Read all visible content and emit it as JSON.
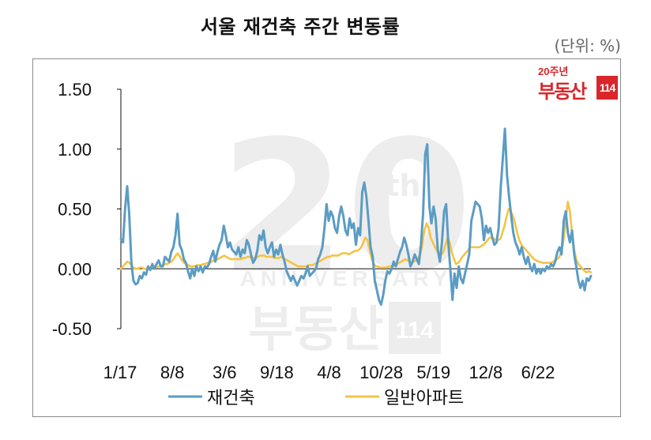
{
  "header": {
    "title": "서울 재건축 주간 변동률",
    "unit": "(단위: %)"
  },
  "logo": {
    "top_text": "20주년",
    "main_text": "부동산",
    "number_text": "114",
    "color": "#d8262b"
  },
  "watermark": {
    "number": "20",
    "suffix": "th",
    "arc_text": "ANNIVERSARY",
    "brand": "부동산",
    "brand_num": "114"
  },
  "chart_data": {
    "type": "line",
    "title": "서울 재건축 주간 변동률",
    "unit": "(단위: %)",
    "ylim": [
      -0.5,
      1.5
    ],
    "yticks": [
      1.5,
      1.0,
      0.5,
      0.0,
      -0.5
    ],
    "ytick_labels": [
      "1.50",
      "1.00",
      "0.50",
      "0.00",
      "-0.50"
    ],
    "xtick_labels": [
      "1/17",
      "8/8",
      "3/6",
      "9/18",
      "4/8",
      "10/28",
      "5/19",
      "12/8",
      "6/22"
    ],
    "legend_position": "bottom",
    "grid": false,
    "series": [
      {
        "name": "재건축",
        "color": "#5b9cc4",
        "values": [
          0.25,
          0.22,
          0.5,
          0.69,
          0.45,
          0.05,
          -0.1,
          -0.13,
          -0.12,
          -0.06,
          -0.08,
          -0.03,
          -0.05,
          0.02,
          -0.01,
          0.04,
          0.0,
          0.04,
          0.07,
          0.02,
          0.02,
          0.1,
          0.08,
          0.06,
          0.14,
          0.18,
          0.28,
          0.46,
          0.2,
          0.16,
          0.08,
          0.05,
          -0.02,
          -0.08,
          0.0,
          -0.06,
          0.02,
          -0.02,
          0.02,
          -0.03,
          0.02,
          0.01,
          0.04,
          0.1,
          0.15,
          0.06,
          0.14,
          0.2,
          0.24,
          0.36,
          0.28,
          0.18,
          0.22,
          0.16,
          0.14,
          0.12,
          0.18,
          0.1,
          0.16,
          0.13,
          0.24,
          0.2,
          0.12,
          0.05,
          0.08,
          0.15,
          0.28,
          0.24,
          0.32,
          0.18,
          0.13,
          0.18,
          0.22,
          0.1,
          0.16,
          0.12,
          0.2,
          0.12,
          0.06,
          -0.02,
          -0.06,
          -0.1,
          -0.06,
          -0.1,
          -0.14,
          -0.1,
          -0.06,
          -0.08,
          -0.04,
          0.02,
          -0.06,
          -0.04,
          -0.02,
          0.0,
          0.08,
          0.12,
          0.18,
          0.34,
          0.54,
          0.4,
          0.48,
          0.44,
          0.34,
          0.3,
          0.44,
          0.52,
          0.44,
          0.32,
          0.28,
          0.42,
          0.34,
          0.38,
          0.2,
          0.34,
          0.28,
          0.64,
          0.72,
          0.6,
          0.4,
          0.18,
          0.1,
          -0.1,
          -0.18,
          -0.26,
          -0.3,
          -0.22,
          -0.1,
          -0.02,
          -0.04,
          0.0,
          0.06,
          0.02,
          0.08,
          0.14,
          0.18,
          0.26,
          0.2,
          0.12,
          0.02,
          0.06,
          0.12,
          0.08,
          0.04,
          0.2,
          0.46,
          0.96,
          1.04,
          0.52,
          0.38,
          0.52,
          0.42,
          0.16,
          0.06,
          0.22,
          0.48,
          0.54,
          0.22,
          0.0,
          -0.26,
          -0.04,
          -0.16,
          0.02,
          -0.08,
          -0.12,
          -0.04,
          0.04,
          0.12,
          0.4,
          0.48,
          0.56,
          0.54,
          0.52,
          0.42,
          0.24,
          0.36,
          0.3,
          0.34,
          0.26,
          0.2,
          0.22,
          0.34,
          0.68,
          0.92,
          1.17,
          0.78,
          0.6,
          0.44,
          0.3,
          0.22,
          0.18,
          0.12,
          0.18,
          0.1,
          0.04,
          0.1,
          0.02,
          -0.02,
          0.04,
          -0.04,
          0.0,
          -0.04,
          0.0,
          -0.02,
          0.02,
          0.0,
          0.04,
          0.02,
          0.06,
          0.14,
          0.18,
          0.12,
          0.4,
          0.48,
          0.3,
          0.22,
          0.32,
          0.12,
          0.02,
          -0.1,
          -0.16,
          -0.1,
          -0.18,
          -0.08,
          -0.1,
          -0.06
        ]
      },
      {
        "name": "일반아파트",
        "color": "#f5c344",
        "values": [
          0.0,
          0.02,
          0.04,
          0.06,
          0.05,
          0.03,
          0.01,
          0.0,
          0.0,
          0.01,
          0.01,
          0.0,
          0.0,
          0.01,
          0.01,
          0.02,
          0.01,
          0.01,
          0.02,
          0.02,
          0.03,
          0.04,
          0.04,
          0.05,
          0.06,
          0.08,
          0.11,
          0.13,
          0.1,
          0.07,
          0.05,
          0.04,
          0.03,
          0.02,
          0.02,
          0.02,
          0.03,
          0.03,
          0.03,
          0.04,
          0.04,
          0.05,
          0.05,
          0.06,
          0.07,
          0.07,
          0.08,
          0.09,
          0.1,
          0.11,
          0.1,
          0.09,
          0.08,
          0.08,
          0.08,
          0.08,
          0.08,
          0.08,
          0.09,
          0.09,
          0.1,
          0.1,
          0.09,
          0.09,
          0.09,
          0.1,
          0.11,
          0.11,
          0.11,
          0.1,
          0.1,
          0.1,
          0.1,
          0.09,
          0.09,
          0.09,
          0.1,
          0.09,
          0.08,
          0.07,
          0.06,
          0.05,
          0.04,
          0.03,
          0.02,
          0.02,
          0.02,
          0.02,
          0.02,
          0.03,
          0.03,
          0.03,
          0.04,
          0.05,
          0.06,
          0.07,
          0.08,
          0.09,
          0.1,
          0.1,
          0.11,
          0.11,
          0.11,
          0.11,
          0.12,
          0.13,
          0.13,
          0.13,
          0.12,
          0.13,
          0.14,
          0.15,
          0.15,
          0.16,
          0.18,
          0.22,
          0.26,
          0.24,
          0.16,
          0.08,
          0.04,
          0.02,
          0.02,
          0.01,
          0.01,
          0.01,
          0.01,
          0.02,
          0.02,
          0.02,
          0.03,
          0.04,
          0.05,
          0.06,
          0.07,
          0.08,
          0.07,
          0.06,
          0.05,
          0.06,
          0.07,
          0.09,
          0.12,
          0.2,
          0.32,
          0.38,
          0.34,
          0.26,
          0.22,
          0.18,
          0.15,
          0.12,
          0.12,
          0.14,
          0.2,
          0.26,
          0.22,
          0.14,
          0.08,
          0.04,
          0.05,
          0.07,
          0.1,
          0.12,
          0.14,
          0.16,
          0.18,
          0.18,
          0.18,
          0.18,
          0.18,
          0.19,
          0.2,
          0.22,
          0.24,
          0.26,
          0.26,
          0.25,
          0.24,
          0.24,
          0.25,
          0.3,
          0.36,
          0.44,
          0.5,
          0.48,
          0.44,
          0.38,
          0.3,
          0.24,
          0.2,
          0.18,
          0.16,
          0.14,
          0.12,
          0.1,
          0.08,
          0.07,
          0.06,
          0.06,
          0.05,
          0.05,
          0.05,
          0.05,
          0.05,
          0.06,
          0.07,
          0.08,
          0.1,
          0.14,
          0.24,
          0.4,
          0.56,
          0.48,
          0.3,
          0.16,
          0.08,
          0.04,
          0.02,
          0.0,
          -0.02,
          -0.03,
          -0.02,
          -0.03
        ]
      }
    ]
  }
}
